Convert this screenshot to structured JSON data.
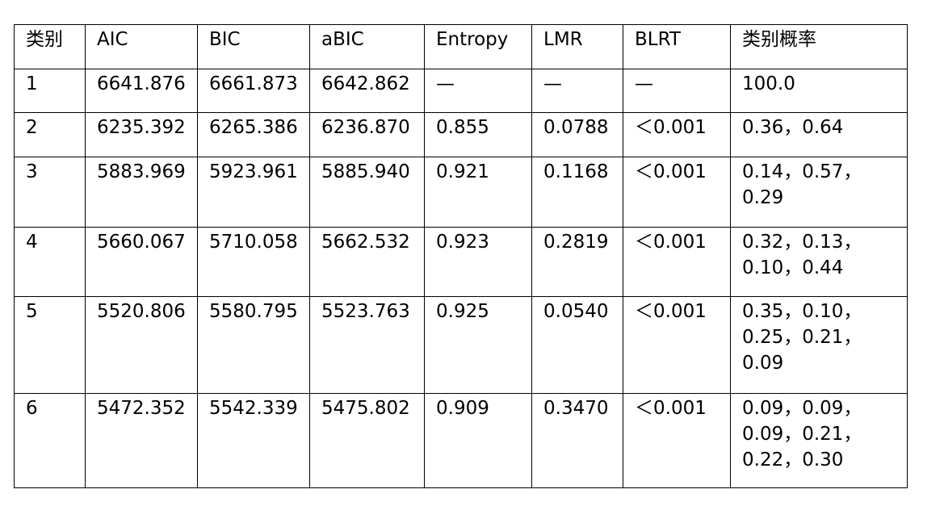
{
  "table": {
    "header": [
      "类别",
      "AIC",
      "BIC",
      "aBIC",
      "Entropy",
      "LMR",
      "BLRT",
      "类别概率"
    ],
    "rows": [
      [
        "1",
        "6641.876",
        "6661.873",
        "6642.862",
        "—",
        "—",
        "—",
        "100.0"
      ],
      [
        "2",
        "6235.392",
        "6265.386",
        "6236.870",
        "0.855",
        "0.0788",
        "＜0.001",
        "0.36，0.64"
      ],
      [
        "3",
        "5883.969",
        "5923.961",
        "5885.940",
        "0.921",
        "0.1168",
        "＜0.001",
        "0.14，0.57，0.29"
      ],
      [
        "4",
        "5660.067",
        "5710.058",
        "5662.532",
        "0.923",
        "0.2819",
        "＜0.001",
        "0.32，0.13，0.10，0.44"
      ],
      [
        "5",
        "5520.806",
        "5580.795",
        "5523.763",
        "0.925",
        "0.0540",
        "＜0.001",
        "0.35，0.10，0.25，0.21，0.09"
      ],
      [
        "6",
        "5472.352",
        "5542.339",
        "5475.802",
        "0.909",
        "0.3470",
        "＜0.001",
        "0.09，0.09，0.09，0.21，0.22，0.30"
      ]
    ]
  }
}
